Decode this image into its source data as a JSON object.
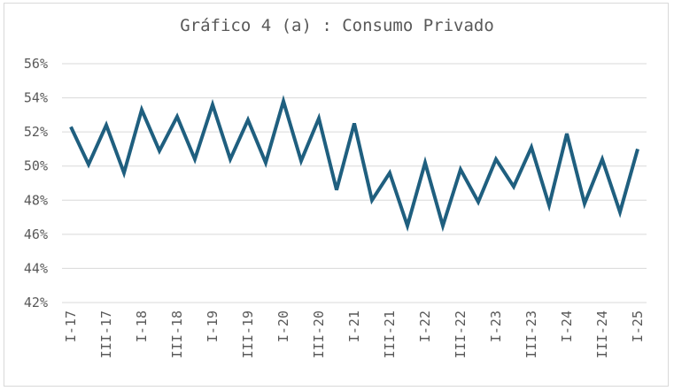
{
  "chart_data": {
    "type": "line",
    "title": "Gráfico 4 (a) : Consumo Privado",
    "xlabel": "",
    "ylabel": "",
    "ylim": [
      42,
      56
    ],
    "y_ticks": [
      "42%",
      "44%",
      "46%",
      "48%",
      "50%",
      "52%",
      "54%",
      "56%"
    ],
    "y_tick_values": [
      42,
      44,
      46,
      48,
      50,
      52,
      54,
      56
    ],
    "grid": true,
    "legend": "none",
    "categories": [
      "I-17",
      "II-17",
      "III-17",
      "IV-17",
      "I-18",
      "II-18",
      "III-18",
      "IV-18",
      "I-19",
      "II-19",
      "III-19",
      "IV-19",
      "I-20",
      "II-20",
      "III-20",
      "IV-20",
      "I-21",
      "II-21",
      "III-21",
      "IV-21",
      "I-22",
      "II-22",
      "III-22",
      "IV-22",
      "I-23",
      "II-23",
      "III-23",
      "IV-23",
      "I-24",
      "II-24",
      "III-24",
      "IV-24",
      "I-25"
    ],
    "x_tick_labels": [
      "I-17",
      "III-17",
      "I-18",
      "III-18",
      "I-19",
      "III-19",
      "I-20",
      "III-20",
      "I-21",
      "III-21",
      "I-22",
      "III-22",
      "I-23",
      "III-23",
      "I-24",
      "III-24",
      "I-25"
    ],
    "series": [
      {
        "values": [
          52.3,
          50.1,
          52.4,
          49.6,
          53.3,
          50.9,
          52.9,
          50.4,
          53.6,
          50.4,
          52.7,
          50.2,
          53.8,
          50.3,
          52.8,
          48.6,
          52.5,
          48.0,
          49.6,
          46.5,
          50.2,
          46.5,
          49.8,
          47.9,
          50.4,
          48.8,
          51.1,
          47.7,
          51.9,
          47.8,
          50.4,
          47.3,
          51.0
        ],
        "color": "#1f5f7f"
      }
    ],
    "colors": {
      "line": "#1f5f7f",
      "grid": "#d9d9d9",
      "text": "#595959"
    }
  }
}
